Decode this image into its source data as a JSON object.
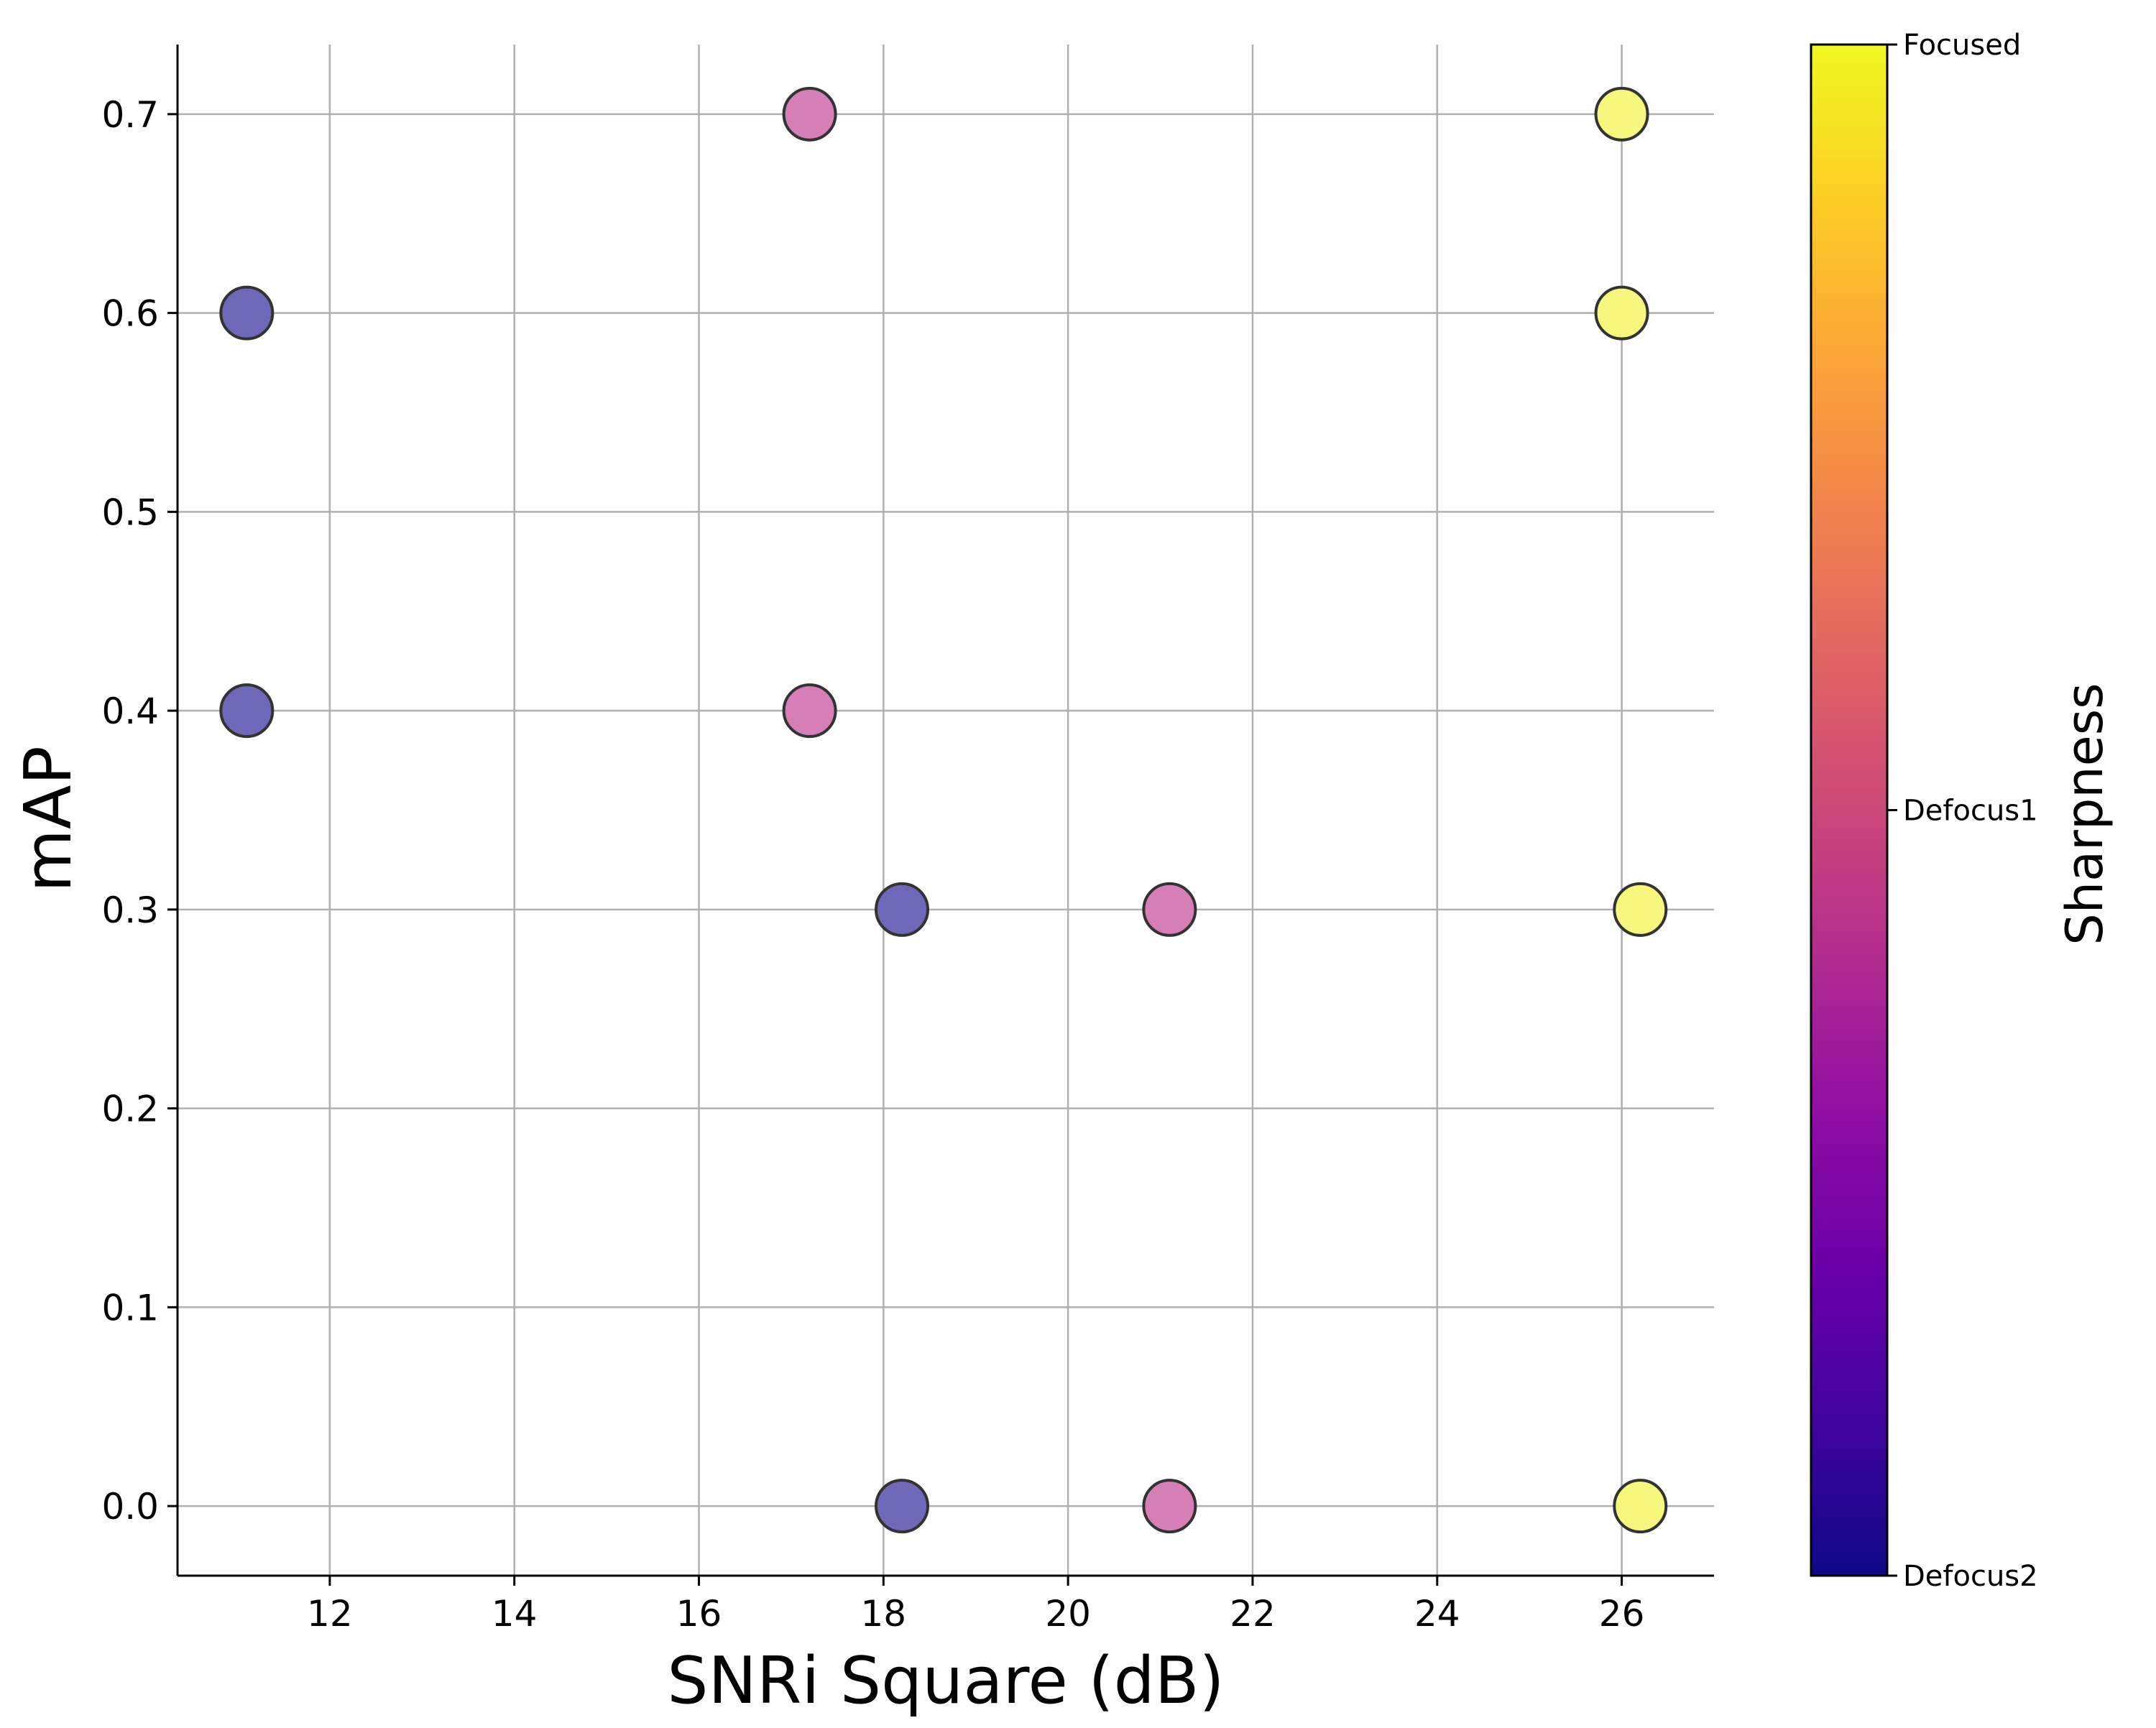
{
  "chart_data": {
    "type": "scatter",
    "title": "",
    "xlabel": "SNRi Square (dB)",
    "ylabel": "mAP",
    "xlim": [
      10.35,
      27.0
    ],
    "ylim": [
      -0.035,
      0.735
    ],
    "xticks": [
      "12",
      "14",
      "16",
      "18",
      "20",
      "22",
      "24",
      "26"
    ],
    "yticks": [
      "0.0",
      "0.1",
      "0.2",
      "0.3",
      "0.4",
      "0.5",
      "0.6",
      "0.7"
    ],
    "grid": true,
    "colorbar": {
      "label": "Sharpness",
      "colormap": "plasma",
      "ticks": [
        "Defocus2",
        "Defocus1",
        "Focused"
      ],
      "tick_values": [
        0,
        0.5,
        1.0
      ]
    },
    "points": [
      {
        "x": 11.1,
        "y": 0.6,
        "category": "Defocus2",
        "color": "#6e68b8"
      },
      {
        "x": 11.1,
        "y": 0.4,
        "category": "Defocus2",
        "color": "#6e68b8"
      },
      {
        "x": 18.2,
        "y": 0.3,
        "category": "Defocus2",
        "color": "#6e68b8"
      },
      {
        "x": 18.2,
        "y": 0.0,
        "category": "Defocus2",
        "color": "#6e68b8"
      },
      {
        "x": 17.2,
        "y": 0.7,
        "category": "Defocus1",
        "color": "#d67fb6"
      },
      {
        "x": 17.2,
        "y": 0.4,
        "category": "Defocus1",
        "color": "#d67fb6"
      },
      {
        "x": 21.1,
        "y": 0.3,
        "category": "Defocus1",
        "color": "#d67fb6"
      },
      {
        "x": 21.1,
        "y": 0.0,
        "category": "Defocus1",
        "color": "#d67fb6"
      },
      {
        "x": 26.0,
        "y": 0.7,
        "category": "Focused",
        "color": "#f6f77c"
      },
      {
        "x": 26.0,
        "y": 0.6,
        "category": "Focused",
        "color": "#f6f77c"
      },
      {
        "x": 26.2,
        "y": 0.3,
        "category": "Focused",
        "color": "#f6f77c"
      },
      {
        "x": 26.2,
        "y": 0.0,
        "category": "Focused",
        "color": "#f6f77c"
      }
    ]
  }
}
